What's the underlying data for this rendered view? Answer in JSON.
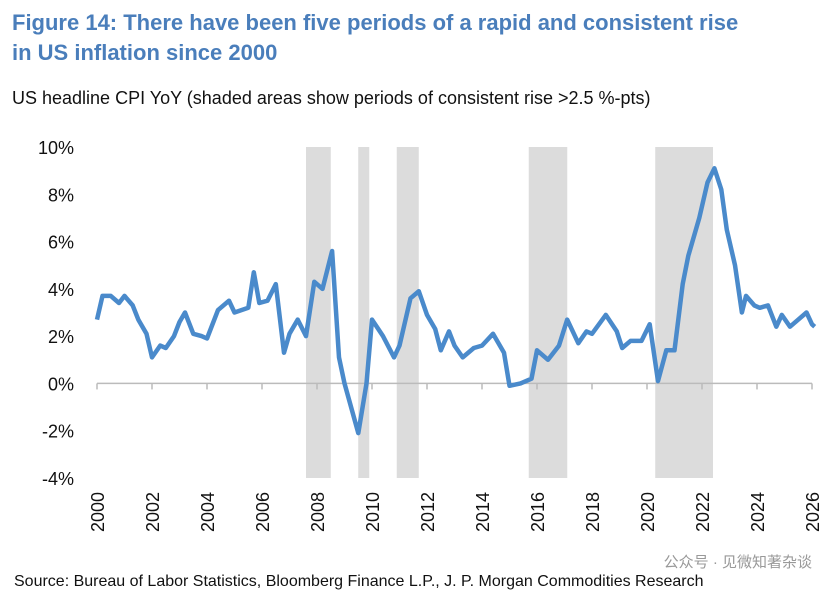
{
  "chart_data": {
    "type": "line",
    "title": "Figure 14: There have been five periods of a rapid and consistent rise in US inflation since 2000",
    "subtitle": "US headline CPI YoY (shaded areas show periods of consistent rise >2.5 %-pts)",
    "source": "Source: Bureau of Labor Statistics, Bloomberg Finance L.P., J. P. Morgan Commodities Research",
    "watermark": "公众号 · 见微知著杂谈",
    "xlim": [
      2000,
      2026
    ],
    "xticks": [
      2000,
      2002,
      2004,
      2006,
      2008,
      2010,
      2012,
      2014,
      2016,
      2018,
      2020,
      2022,
      2024,
      2026
    ],
    "ylim": [
      -4,
      10
    ],
    "yticks": [
      {
        "value": -4,
        "label": "-4%"
      },
      {
        "value": -2,
        "label": "-2%"
      },
      {
        "value": 0,
        "label": "0%"
      },
      {
        "value": 2,
        "label": "2%"
      },
      {
        "value": 4,
        "label": "4%"
      },
      {
        "value": 6,
        "label": "6%"
      },
      {
        "value": 8,
        "label": "8%"
      },
      {
        "value": 10,
        "label": "10%"
      }
    ],
    "shaded_periods": [
      [
        2007.6,
        2008.5
      ],
      [
        2009.5,
        2009.9
      ],
      [
        2010.9,
        2011.7
      ],
      [
        2015.7,
        2017.1
      ],
      [
        2020.3,
        2022.4
      ]
    ],
    "shade_color": "#dcdcdc",
    "x": [
      2000.0,
      2000.2,
      2000.5,
      2000.8,
      2001.0,
      2001.3,
      2001.5,
      2001.8,
      2002.0,
      2002.3,
      2002.5,
      2002.8,
      2003.0,
      2003.2,
      2003.5,
      2003.8,
      2004.0,
      2004.4,
      2004.8,
      2005.0,
      2005.5,
      2005.7,
      2005.9,
      2006.2,
      2006.5,
      2006.8,
      2007.0,
      2007.3,
      2007.6,
      2007.9,
      2008.2,
      2008.55,
      2008.8,
      2009.0,
      2009.5,
      2009.8,
      2010.0,
      2010.4,
      2010.8,
      2011.0,
      2011.4,
      2011.7,
      2012.0,
      2012.3,
      2012.5,
      2012.8,
      2013.0,
      2013.3,
      2013.7,
      2014.0,
      2014.4,
      2014.8,
      2015.0,
      2015.4,
      2015.8,
      2016.0,
      2016.4,
      2016.8,
      2017.1,
      2017.5,
      2017.8,
      2018.0,
      2018.5,
      2018.9,
      2019.1,
      2019.4,
      2019.8,
      2020.1,
      2020.4,
      2020.7,
      2021.0,
      2021.3,
      2021.5,
      2021.9,
      2022.2,
      2022.45,
      2022.7,
      2022.9,
      2023.2,
      2023.45,
      2023.6,
      2023.9,
      2024.1,
      2024.4,
      2024.7,
      2024.9,
      2025.2,
      2025.5,
      2025.8,
      2026.0,
      2026.1
    ],
    "series": [
      {
        "name": "US headline CPI YoY",
        "color": "#4a8acb",
        "values": [
          2.7,
          3.7,
          3.7,
          3.4,
          3.7,
          3.3,
          2.7,
          2.1,
          1.1,
          1.6,
          1.5,
          2.0,
          2.6,
          3.0,
          2.1,
          2.0,
          1.9,
          3.1,
          3.5,
          3.0,
          3.2,
          4.7,
          3.4,
          3.5,
          4.2,
          1.3,
          2.1,
          2.7,
          2.0,
          4.3,
          4.0,
          5.6,
          1.1,
          0.0,
          -2.1,
          0.0,
          2.7,
          2.0,
          1.1,
          1.6,
          3.6,
          3.9,
          2.9,
          2.3,
          1.4,
          2.2,
          1.6,
          1.1,
          1.5,
          1.6,
          2.1,
          1.3,
          -0.1,
          0.0,
          0.2,
          1.4,
          1.0,
          1.6,
          2.7,
          1.7,
          2.2,
          2.1,
          2.9,
          2.2,
          1.5,
          1.8,
          1.8,
          2.5,
          0.1,
          1.4,
          1.4,
          4.2,
          5.4,
          7.0,
          8.5,
          9.1,
          8.2,
          6.5,
          5.0,
          3.0,
          3.7,
          3.3,
          3.2,
          3.3,
          2.4,
          2.9,
          2.4,
          2.7,
          3.0,
          2.5,
          2.4
        ]
      }
    ]
  }
}
